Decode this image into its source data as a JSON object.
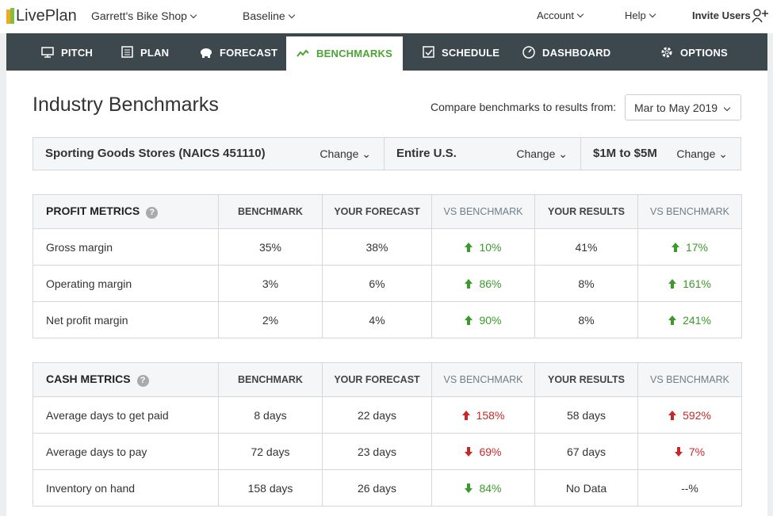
{
  "header": {
    "logo": "LivePlan",
    "company": "Garrett's Bike Shop",
    "scenario": "Baseline",
    "account": "Account",
    "help": "Help",
    "invite": "Invite Users"
  },
  "nav": [
    "PITCH",
    "PLAN",
    "FORECAST",
    "BENCHMARKS",
    "SCHEDULE",
    "DASHBOARD",
    "OPTIONS"
  ],
  "page": {
    "title": "Industry Benchmarks",
    "compare_label": "Compare benchmarks to results from:",
    "period": "Mar to May 2019"
  },
  "filters": [
    {
      "label": "Sporting Goods Stores (NAICS 451110)",
      "action": "Change"
    },
    {
      "label": "Entire U.S.",
      "action": "Change"
    },
    {
      "label": "$1M to $5M",
      "action": "Change"
    }
  ],
  "tables": [
    {
      "title": "PROFIT METRICS",
      "columns": [
        "BENCHMARK",
        "YOUR FORECAST",
        "VS BENCHMARK",
        "YOUR RESULTS",
        "VS BENCHMARK"
      ],
      "rows": [
        [
          "Gross margin",
          "35%",
          "38%",
          "10%",
          "41%",
          "17%"
        ],
        [
          "Operating margin",
          "3%",
          "6%",
          "86%",
          "8%",
          "161%"
        ],
        [
          "Net profit margin",
          "2%",
          "4%",
          "90%",
          "8%",
          "241%"
        ]
      ]
    },
    {
      "title": "CASH METRICS",
      "columns": [
        "BENCHMARK",
        "YOUR FORECAST",
        "VS BENCHMARK",
        "YOUR RESULTS",
        "VS BENCHMARK"
      ],
      "rows": [
        [
          "Average days to get paid",
          "8 days",
          "22 days",
          "158%",
          "58 days",
          "592%"
        ],
        [
          "Average days to pay",
          "72 days",
          "23 days",
          "69%",
          "67 days",
          "7%"
        ],
        [
          "Inventory on hand",
          "158 days",
          "26 days",
          "84%",
          "No Data",
          "--%"
        ]
      ]
    }
  ]
}
